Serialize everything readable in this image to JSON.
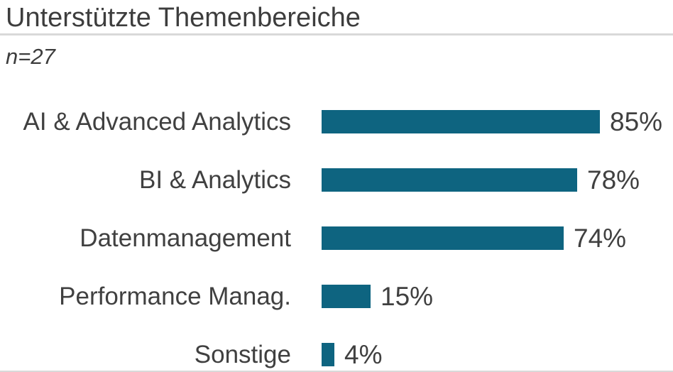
{
  "header": {
    "title": "Unterstützte Themenbereiche",
    "sample_size": "n=27"
  },
  "chart_data": {
    "type": "bar",
    "orientation": "horizontal",
    "title": "Unterstützte Themenbereiche",
    "subtitle": "n=27",
    "categories": [
      "AI & Advanced Analytics",
      "BI & Analytics",
      "Datenmanagement",
      "Performance Manag.",
      "Sonstige"
    ],
    "values": [
      85,
      78,
      74,
      15,
      4
    ],
    "value_labels": [
      "85%",
      "78%",
      "74%",
      "15%",
      "4%"
    ],
    "unit": "%",
    "xlim": [
      0,
      100
    ],
    "grid": false,
    "legend": false,
    "bar_color": "#0e6480"
  },
  "colors": {
    "bar": "#0e6480",
    "text": "#404040",
    "title_text": "#3d3d3d",
    "separator": "#d9d9d9",
    "background": "#ffffff"
  }
}
